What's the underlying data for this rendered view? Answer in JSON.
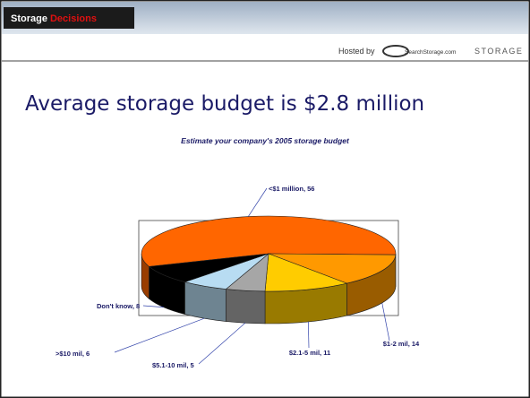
{
  "header": {
    "brand": "Storage",
    "brand_accent": "Decisions",
    "hosted_by": "Hosted by",
    "host": "SearchStorage.com",
    "host_mag": "STORAGE"
  },
  "slide_title": "Average storage budget is $2.8 million",
  "chart_data": {
    "type": "pie",
    "title": "Estimate your company's 2005 storage budget",
    "categories": [
      "<$1 million",
      "$1-2 mil",
      "$2.1-5 mil",
      "$5.1-10 mil",
      ">$10 mil",
      "Don't know"
    ],
    "values": [
      56,
      14,
      11,
      5,
      6,
      8
    ],
    "value_labels": [
      "<$1 million, 56",
      "$1-2 mil, 14",
      "$2.1-5 mil, 11",
      "$5.1-10 mil, 5",
      ">$10 mil, 6",
      "Don't know, 8"
    ],
    "colors": [
      "#ff6600",
      "#ff9900",
      "#ffcc00",
      "#a6a6a6",
      "#b8dcf2",
      "#000000"
    ]
  }
}
